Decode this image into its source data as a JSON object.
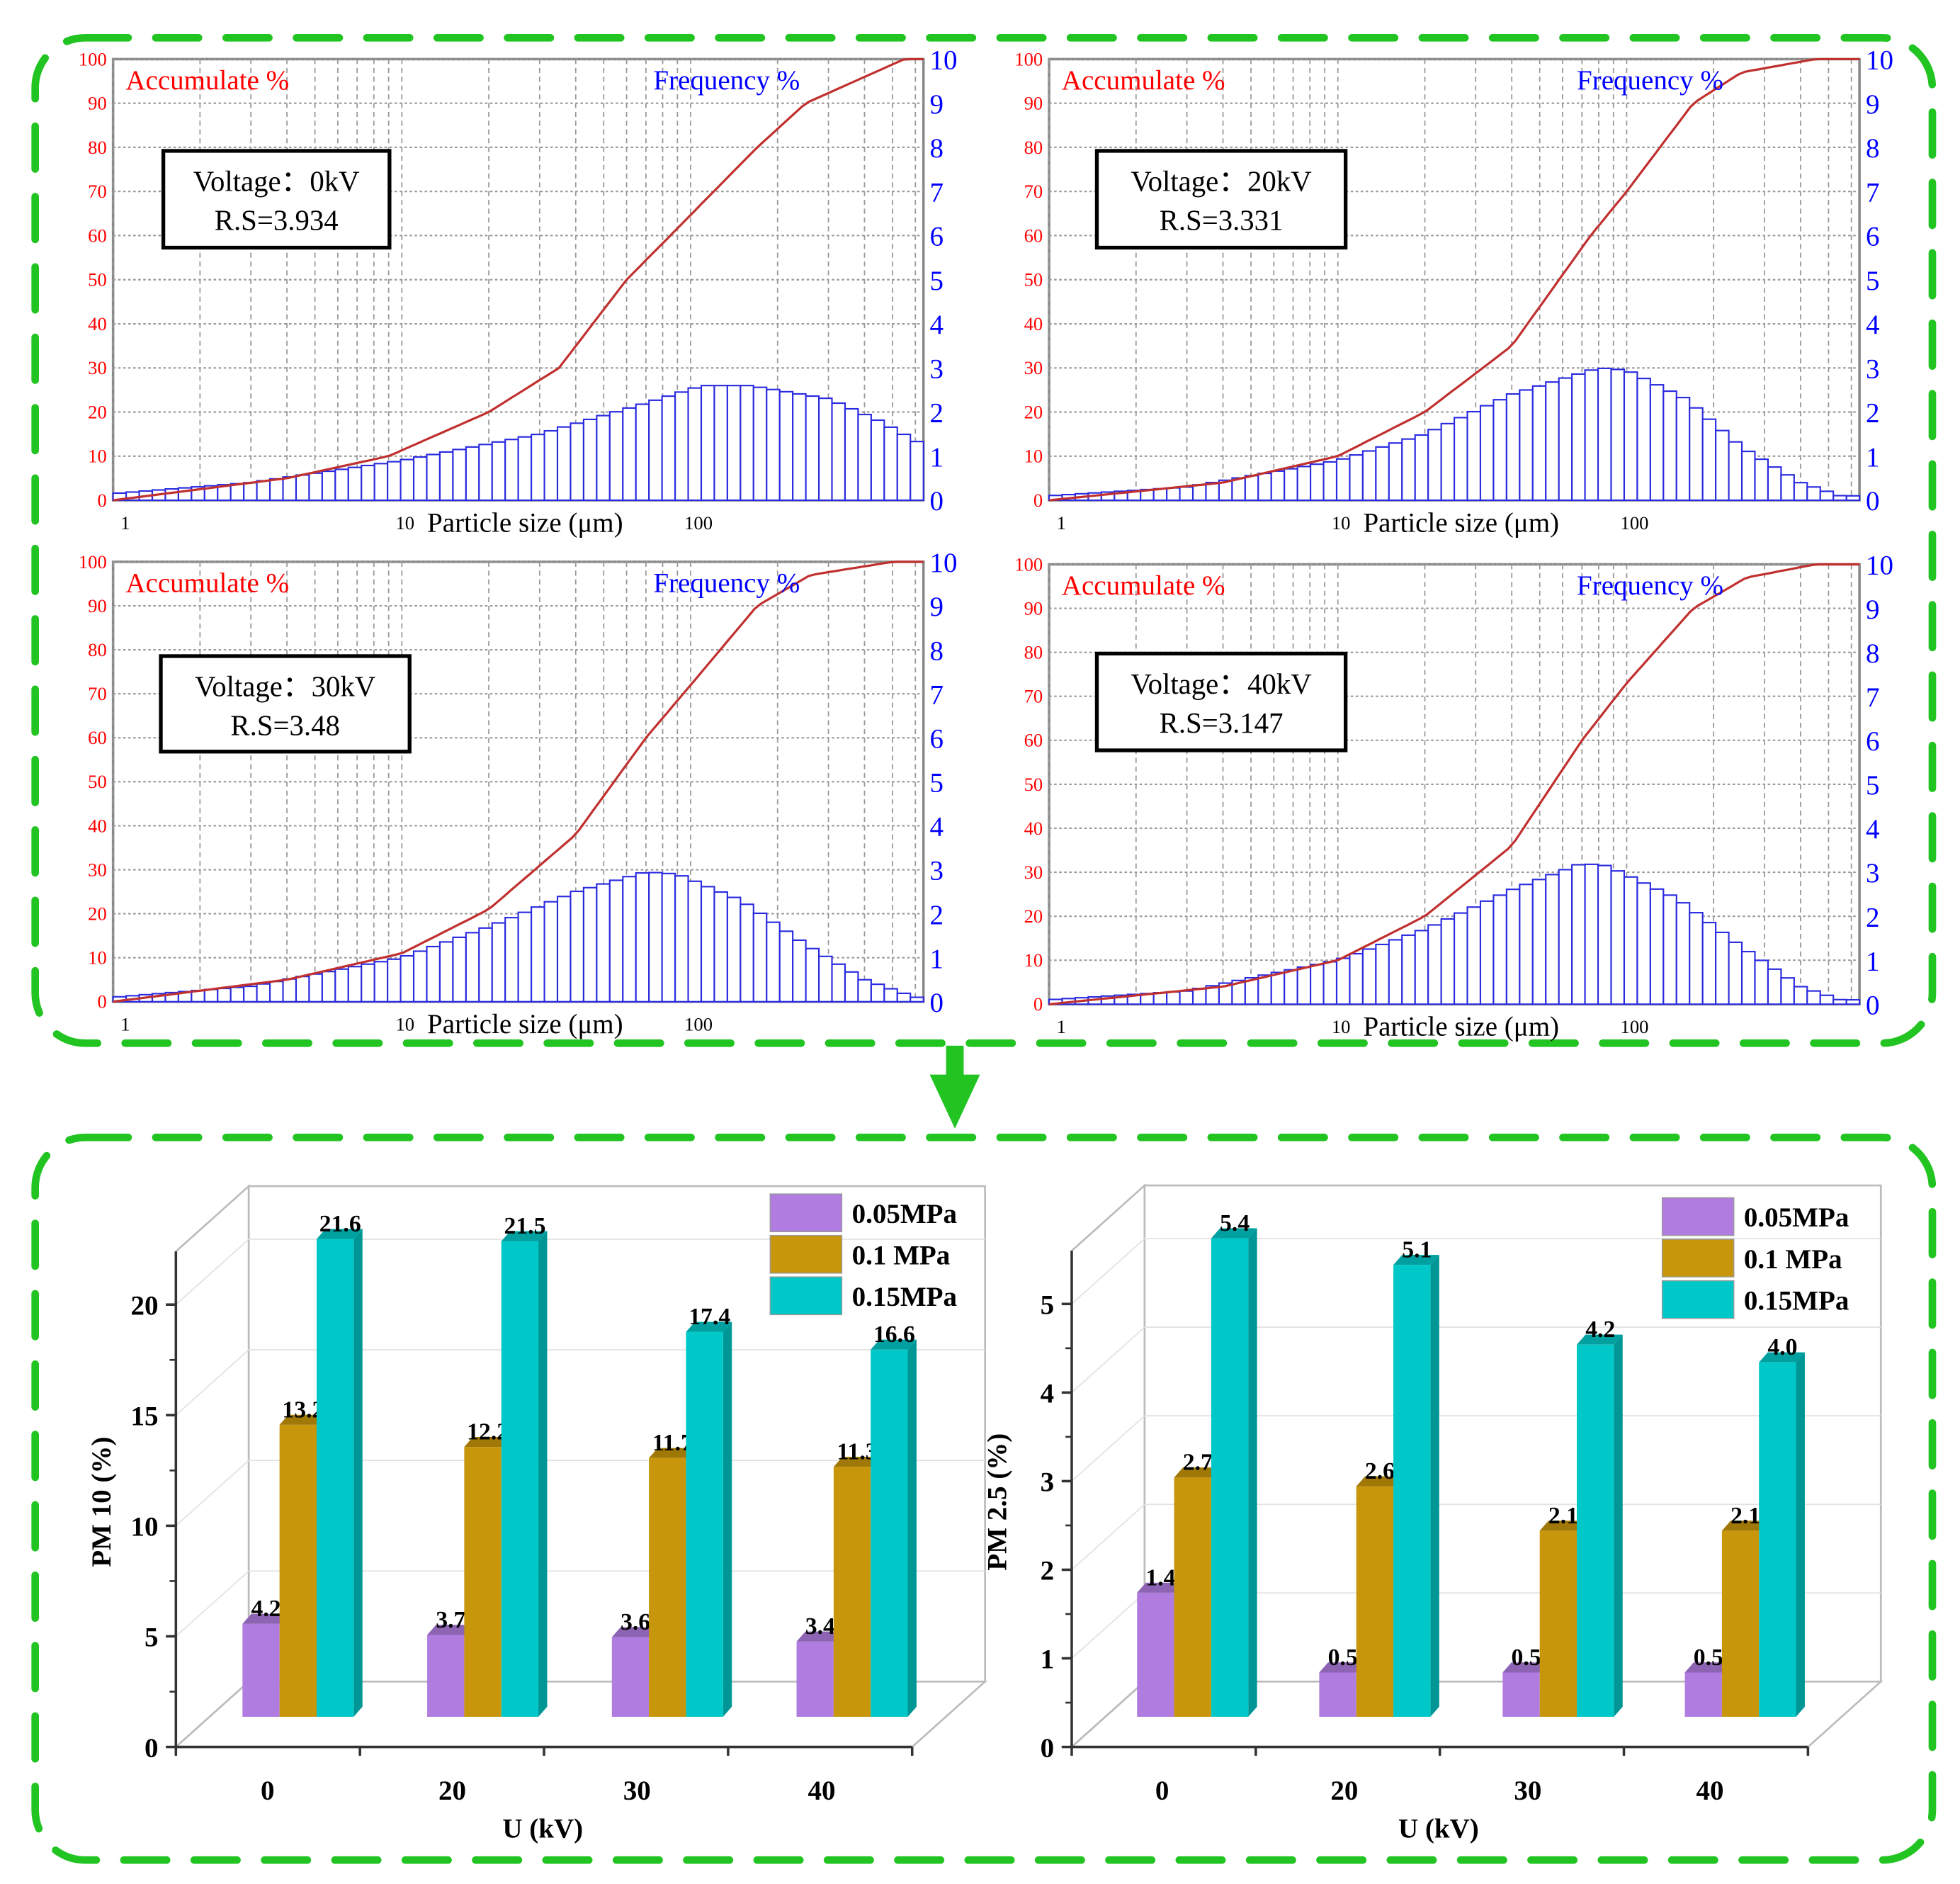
{
  "colors": {
    "frame": "#22c422",
    "accumulate": "#c0302f",
    "frequency": "#2a2ae0",
    "left_axis": "#ff0000",
    "right_axis": "#0000ff",
    "s1": "#b07ce0",
    "s2": "#c8960a",
    "s3": "#00c8c8"
  },
  "chart_data": [
    {
      "type": "bar+line",
      "panel": "top-left",
      "title_left": "Accumulate %",
      "title_right": "Frequency %",
      "xlabel": "Particle size (μm)",
      "x_scale": "log",
      "xlim": [
        1,
        640
      ],
      "x_ticks": [
        "1",
        "10",
        "100"
      ],
      "ylim_left": [
        0,
        100
      ],
      "ylim_right": [
        0,
        10
      ],
      "y_ticks_left": [
        "0",
        "10",
        "20",
        "30",
        "40",
        "50",
        "60",
        "70",
        "80",
        "90",
        "100"
      ],
      "y_ticks_right": [
        "0",
        "1",
        "2",
        "3",
        "4",
        "5",
        "6",
        "7",
        "8",
        "9",
        "10"
      ],
      "annotation": {
        "line1": "Voltage：0kV",
        "line2": "R.S=3.934"
      },
      "frequency": {
        "x": [
          1,
          3,
          10,
          30,
          70,
          110,
          160,
          300,
          450,
          640
        ],
        "y": [
          0.15,
          0.4,
          0.9,
          1.5,
          2.2,
          2.6,
          2.6,
          2.3,
          1.8,
          1.25
        ]
      },
      "accumulate": {
        "x": [
          1,
          4,
          9,
          20,
          35,
          60,
          85,
          170,
          250,
          550
        ],
        "y": [
          0,
          5,
          10,
          20,
          30,
          50,
          60,
          80,
          90,
          100
        ]
      }
    },
    {
      "type": "bar+line",
      "panel": "top-right",
      "title_left": "Accumulate %",
      "title_right": "Frequency %",
      "xlabel": "Particle size (μm)",
      "x_scale": "log",
      "xlim": [
        1,
        640
      ],
      "x_ticks": [
        "1",
        "10",
        "100"
      ],
      "ylim_left": [
        0,
        100
      ],
      "ylim_right": [
        0,
        10
      ],
      "y_ticks_left": [
        "0",
        "10",
        "20",
        "30",
        "40",
        "50",
        "60",
        "70",
        "80",
        "90",
        "100"
      ],
      "y_ticks_right": [
        "0",
        "1",
        "2",
        "3",
        "4",
        "5",
        "6",
        "7",
        "8",
        "9",
        "10"
      ],
      "annotation": {
        "line1": "Voltage：20kV",
        "line2": "R.S=3.331"
      },
      "frequency": {
        "x": [
          1,
          3,
          10,
          20,
          40,
          80,
          100,
          160,
          250,
          400,
          550
        ],
        "y": [
          0.1,
          0.3,
          0.9,
          1.5,
          2.4,
          3.0,
          2.95,
          2.3,
          1.2,
          0.4,
          0.1
        ]
      },
      "accumulate": {
        "x": [
          1,
          4,
          10,
          20,
          40,
          75,
          100,
          170,
          250,
          450
        ],
        "y": [
          0,
          4,
          10,
          20,
          35,
          60,
          70,
          90,
          97,
          100
        ]
      }
    },
    {
      "type": "bar+line",
      "panel": "bottom-left",
      "title_left": "Accumulate %",
      "title_right": "Frequency %",
      "xlabel": "Particle size (μm)",
      "x_scale": "log",
      "xlim": [
        1,
        640
      ],
      "x_ticks": [
        "1",
        "10",
        "100"
      ],
      "ylim_left": [
        0,
        100
      ],
      "ylim_right": [
        0,
        10
      ],
      "y_ticks_left": [
        "0",
        "10",
        "20",
        "30",
        "40",
        "50",
        "60",
        "70",
        "80",
        "90",
        "100"
      ],
      "y_ticks_right": [
        "0",
        "1",
        "2",
        "3",
        "4",
        "5",
        "6",
        "7",
        "8",
        "9",
        "10"
      ],
      "annotation": {
        "line1": "Voltage：30kV",
        "line2": "R.S=3.48"
      },
      "frequency": {
        "x": [
          1,
          3,
          10,
          20,
          40,
          70,
          90,
          150,
          250,
          400,
          600
        ],
        "y": [
          0.1,
          0.35,
          1.0,
          1.7,
          2.5,
          2.95,
          2.9,
          2.3,
          1.3,
          0.5,
          0.1
        ]
      },
      "accumulate": {
        "x": [
          1,
          4,
          10,
          20,
          40,
          70,
          100,
          170,
          260,
          500
        ],
        "y": [
          0,
          5,
          11,
          21,
          38,
          60,
          72,
          90,
          97,
          100
        ]
      }
    },
    {
      "type": "bar+line",
      "panel": "bottom-right",
      "title_left": "Accumulate %",
      "title_right": "Frequency %",
      "xlabel": "Particle size (μm)",
      "x_scale": "log",
      "xlim": [
        1,
        640
      ],
      "x_ticks": [
        "1",
        "10",
        "100"
      ],
      "ylim_left": [
        0,
        100
      ],
      "ylim_right": [
        0,
        10
      ],
      "y_ticks_left": [
        "0",
        "10",
        "20",
        "30",
        "40",
        "50",
        "60",
        "70",
        "80",
        "90",
        "100"
      ],
      "y_ticks_right": [
        "0",
        "1",
        "2",
        "3",
        "4",
        "5",
        "6",
        "7",
        "8",
        "9",
        "10"
      ],
      "annotation": {
        "line1": "Voltage：40kV",
        "line2": "R.S=3.147"
      },
      "frequency": {
        "x": [
          1,
          3,
          10,
          20,
          40,
          70,
          85,
          150,
          250,
          400,
          550
        ],
        "y": [
          0.1,
          0.3,
          1.0,
          1.7,
          2.6,
          3.2,
          3.15,
          2.4,
          1.3,
          0.4,
          0.1
        ]
      },
      "accumulate": {
        "x": [
          1,
          4,
          10,
          20,
          40,
          70,
          100,
          170,
          260,
          450
        ],
        "y": [
          0,
          4,
          10,
          20,
          36,
          60,
          73,
          90,
          97,
          100
        ]
      }
    },
    {
      "type": "bar",
      "panel": "pm10",
      "ylabel": "PM 10 (%)",
      "xlabel": "U (kV)",
      "categories": [
        "0",
        "20",
        "30",
        "40"
      ],
      "ylim": [
        0,
        20
      ],
      "y_ticks": [
        "0",
        "5",
        "10",
        "15",
        "20"
      ],
      "series": [
        {
          "name": "0.05MPa",
          "values": [
            4.2,
            3.7,
            3.6,
            3.4
          ],
          "labels": [
            "4.2",
            "3.7",
            "3.6",
            "3.4"
          ]
        },
        {
          "name": "0.1  MPa",
          "values": [
            13.2,
            12.2,
            11.7,
            11.3
          ],
          "labels": [
            "13.2",
            "12.2",
            "11.7",
            "11.3"
          ]
        },
        {
          "name": "0.15MPa",
          "values": [
            21.6,
            21.5,
            17.4,
            16.6
          ],
          "labels": [
            "21.6",
            "21.5",
            "17.4",
            "16.6"
          ]
        }
      ],
      "legend": "top-right"
    },
    {
      "type": "bar",
      "panel": "pm25",
      "ylabel": "PM 2.5 (%)",
      "xlabel": "U (kV)",
      "categories": [
        "0",
        "20",
        "30",
        "40"
      ],
      "ylim": [
        0,
        5
      ],
      "y_ticks": [
        "0",
        "1",
        "2",
        "3",
        "4",
        "5"
      ],
      "series": [
        {
          "name": "0.05MPa",
          "values": [
            1.4,
            0.5,
            0.5,
            0.5
          ],
          "labels": [
            "1.4",
            "0.5",
            "0.5",
            "0.5"
          ]
        },
        {
          "name": "0.1  MPa",
          "values": [
            2.7,
            2.6,
            2.1,
            2.1
          ],
          "labels": [
            "2.7",
            "2.6",
            "2.1",
            "2.1"
          ]
        },
        {
          "name": "0.15MPa",
          "values": [
            5.4,
            5.1,
            4.2,
            4.0
          ],
          "labels": [
            "5.4",
            "5.1",
            "4.2",
            "4.0"
          ]
        }
      ],
      "legend": "top-right"
    }
  ]
}
